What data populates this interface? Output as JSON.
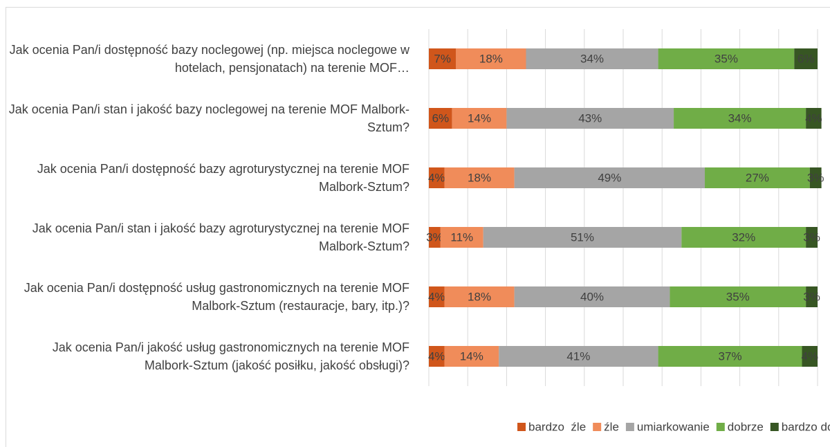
{
  "chart_data": {
    "type": "stacked_barh",
    "categories": [
      "Jak ocenia Pan/i dostępność bazy noclegowej (np. miejsca noclegowe w hotelach, pensjonatach) na terenie MOF…",
      "Jak ocenia Pan/i stan i jakość bazy noclegowej na terenie MOF Malbork-Sztum?",
      "Jak ocenia Pan/i dostępność bazy agroturystycznej na terenie MOF Malbork-Sztum?",
      "Jak ocenia Pan/i stan i jakość bazy agroturystycznej na terenie MOF Malbork-Sztum?",
      "Jak ocenia Pan/i dostępność usług gastronomicznych na terenie MOF Malbork-Sztum (restauracje, bary, itp.)?",
      "Jak ocenia Pan/i jakość usług gastronomicznych na terenie MOF Malbork-Sztum (jakość posiłku, jakość obsługi)?"
    ],
    "series": [
      {
        "name": "bardzo  źle",
        "color": "#d0561b",
        "values": [
          7,
          6,
          4,
          3,
          4,
          4
        ],
        "value_labels": [
          "7%",
          "6%",
          "4%",
          "3%",
          "4%",
          "4%"
        ]
      },
      {
        "name": "źle",
        "color": "#f08c5a",
        "values": [
          18,
          14,
          18,
          11,
          18,
          14
        ],
        "value_labels": [
          "18%",
          "14%",
          "18%",
          "11%",
          "18%",
          "14%"
        ]
      },
      {
        "name": "umiarkowanie",
        "color": "#a5a5a5",
        "values": [
          34,
          43,
          49,
          51,
          40,
          41
        ],
        "value_labels": [
          "34%",
          "43%",
          "49%",
          "51%",
          "40%",
          "41%"
        ]
      },
      {
        "name": "dobrze",
        "color": "#70ad47",
        "values": [
          35,
          34,
          27,
          32,
          35,
          37
        ],
        "value_labels": [
          "35%",
          "34%",
          "27%",
          "32%",
          "35%",
          "37%"
        ]
      },
      {
        "name": "bardzo dobrze",
        "color": "#375623",
        "values": [
          6,
          4,
          3,
          3,
          3,
          4
        ],
        "value_labels": [
          "6%",
          "4%",
          "3%",
          "3%",
          "3%",
          "4%"
        ]
      }
    ],
    "xlim": [
      0,
      100
    ],
    "xticks": [
      0,
      10,
      20,
      30,
      40,
      50,
      60,
      70,
      80,
      90,
      100
    ],
    "grid": true,
    "legend": "bottom"
  }
}
